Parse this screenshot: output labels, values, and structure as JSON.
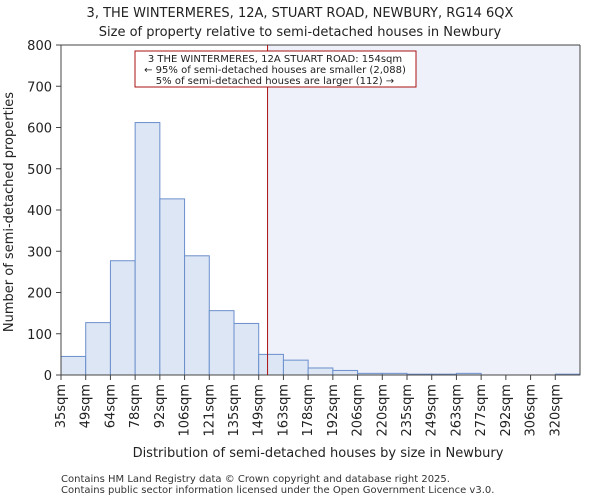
{
  "chart_data": {
    "type": "bar",
    "title": "3, THE WINTERMERES, 12A, STUART ROAD, NEWBURY, RG14 6QX",
    "subtitle": "Size of property relative to semi-detached houses in Newbury",
    "xlabel": "Distribution of semi-detached houses by size in Newbury",
    "ylabel": "Number of semi-detached properties",
    "ylim": [
      0,
      800
    ],
    "yticks": [
      0,
      100,
      200,
      300,
      400,
      500,
      600,
      700,
      800
    ],
    "categories": [
      "35sqm",
      "49sqm",
      "64sqm",
      "78sqm",
      "92sqm",
      "106sqm",
      "121sqm",
      "135sqm",
      "149sqm",
      "163sqm",
      "178sqm",
      "192sqm",
      "206sqm",
      "220sqm",
      "235sqm",
      "249sqm",
      "263sqm",
      "277sqm",
      "292sqm",
      "306sqm",
      "320sqm"
    ],
    "bin_edges": [
      35,
      49,
      64,
      78,
      92,
      106,
      121,
      135,
      149,
      163,
      178,
      192,
      206,
      220,
      235,
      249,
      263,
      277,
      292,
      306,
      320,
      334
    ],
    "values": [
      45,
      127,
      277,
      612,
      427,
      289,
      156,
      125,
      50,
      36,
      17,
      11,
      4,
      4,
      2,
      2,
      4,
      0,
      0,
      0,
      2
    ],
    "marker": {
      "value_sqm": 154,
      "label_line1": "3 THE WINTERMERES, 12A STUART ROAD: 154sqm",
      "label_line2": "← 95% of semi-detached houses are smaller (2,088)",
      "label_line3": "5% of semi-detached houses are larger (112) →"
    },
    "grid": false,
    "colors": {
      "bar_fill": "#dce6f5",
      "bar_stroke": "#6b8fcc",
      "highlight_region": "#eef1fa",
      "marker_line": "#aa1111",
      "annot_border": "#aa1111"
    }
  },
  "footer": {
    "line1": "Contains HM Land Registry data © Crown copyright and database right 2025.",
    "line2": "Contains public sector information licensed under the Open Government Licence v3.0."
  }
}
